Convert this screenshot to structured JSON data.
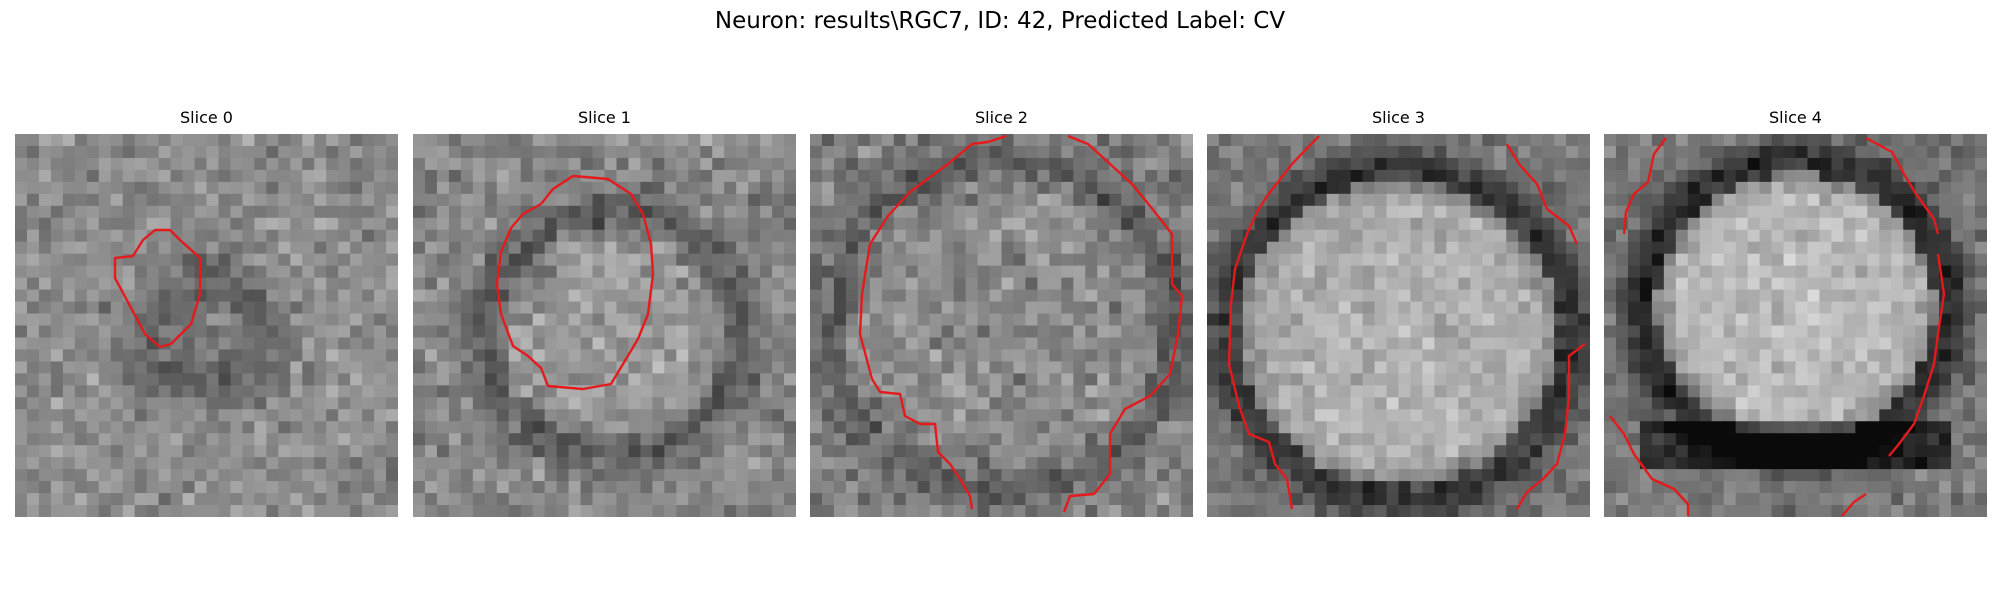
{
  "figure": {
    "title": "Neuron: results\\RGC7, ID: 42, Predicted Label: CV"
  },
  "panels": [
    {
      "title": "Slice 0"
    },
    {
      "title": "Slice 1"
    },
    {
      "title": "Slice 2"
    },
    {
      "title": "Slice 3"
    },
    {
      "title": "Slice 4"
    }
  ],
  "colors": {
    "contour": "#e41a1c",
    "background": "#ffffff"
  }
}
